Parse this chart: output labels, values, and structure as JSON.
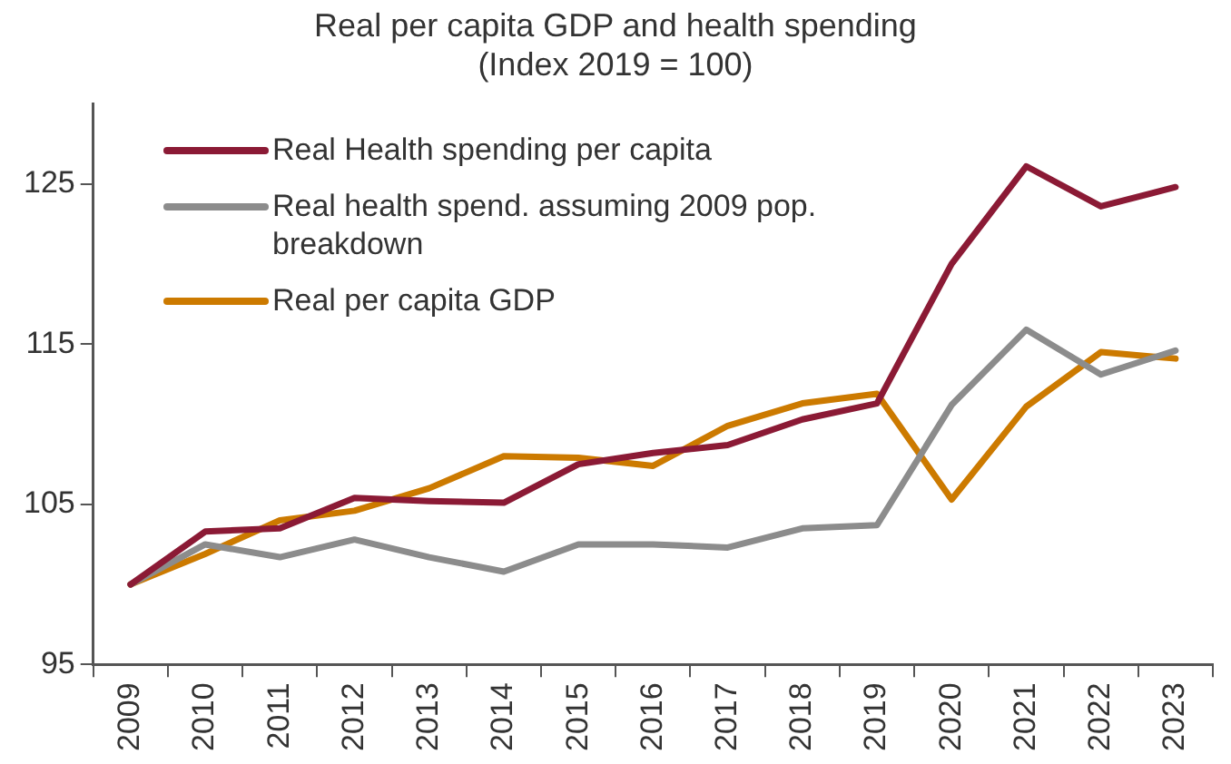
{
  "chart_data": {
    "type": "line",
    "title": "Real per capita GDP and health spending",
    "subtitle": "(Index 2019 = 100)",
    "categories": [
      "2009",
      "2010",
      "2011",
      "2012",
      "2013",
      "2014",
      "2015",
      "2016",
      "2017",
      "2018",
      "2019",
      "2020",
      "2021",
      "2022",
      "2023"
    ],
    "series": [
      {
        "name": "Real Health spending per capita",
        "color": "#8b1a35",
        "values": [
          100,
          103.3,
          103.5,
          105.4,
          105.2,
          105.1,
          107.5,
          108.2,
          108.7,
          110.3,
          111.3,
          120.0,
          126.1,
          123.6,
          124.8
        ]
      },
      {
        "name": "Real health spend. assuming 2009 pop. breakdown",
        "color": "#8c8c8c",
        "values": [
          100,
          102.5,
          101.7,
          102.8,
          101.7,
          100.8,
          102.5,
          102.5,
          102.3,
          103.5,
          103.7,
          111.2,
          115.9,
          113.1,
          114.6
        ]
      },
      {
        "name": "Real per capita GDP",
        "color": "#cc7a00",
        "values": [
          100,
          101.9,
          104.0,
          104.6,
          106.0,
          108.0,
          107.9,
          107.4,
          109.9,
          111.3,
          111.9,
          105.3,
          111.1,
          114.5,
          114.1
        ]
      }
    ],
    "ylim": [
      95,
      130
    ],
    "yticks": [
      95,
      105,
      115,
      125
    ],
    "grid": false,
    "legend": "top left",
    "marker": "none",
    "line_style": "solid"
  }
}
